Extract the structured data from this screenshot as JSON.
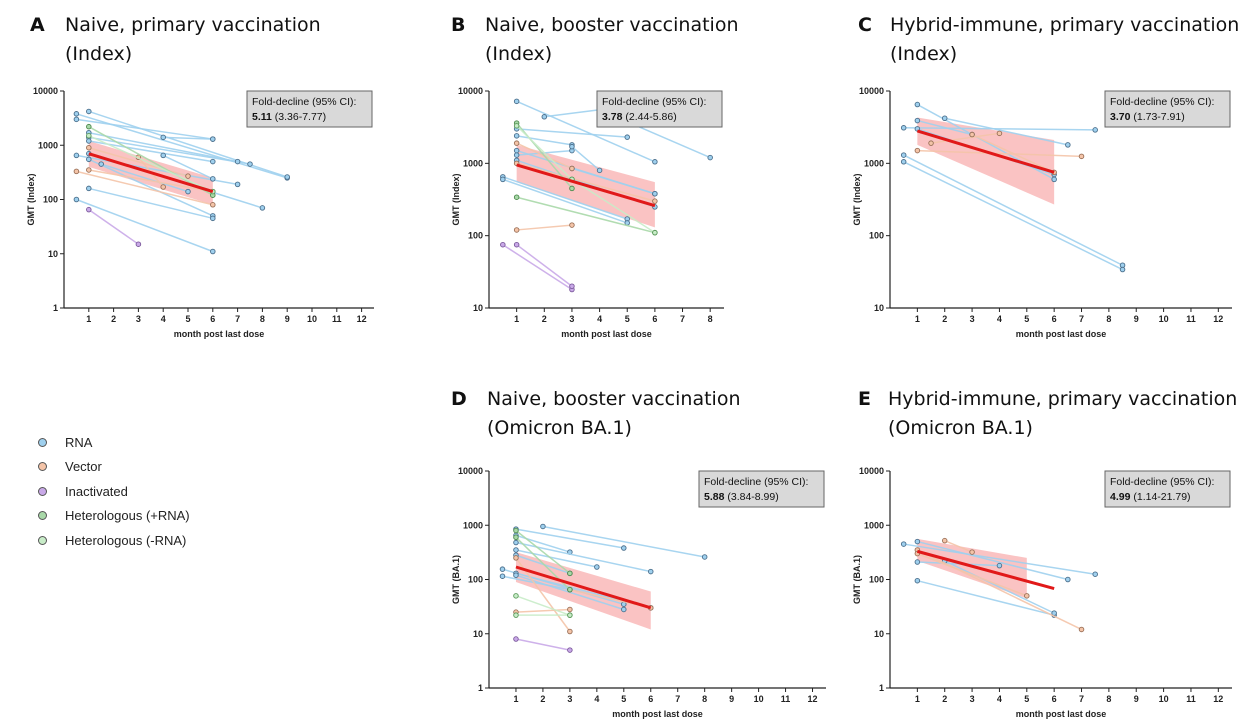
{
  "legend": [
    {
      "label": "RNA",
      "color": "#9fd0ee"
    },
    {
      "label": "Vector",
      "color": "#f4c4a8"
    },
    {
      "label": "Inactivated",
      "color": "#c9a9e8"
    },
    {
      "label": "Heterologous (+RNA)",
      "color": "#a8d8a8"
    },
    {
      "label": "Heterologous (-RNA)",
      "color": "#c8ecc8"
    }
  ],
  "chart_data": [
    {
      "id": "A",
      "type": "line",
      "panel_label": "A",
      "title_line1": "Naive, primary vaccination",
      "title_line2": "(Index)",
      "ylabel": "GMT (Index)",
      "xlabel": "month post last dose",
      "yscale": "log",
      "ylim": [
        1,
        10000
      ],
      "xlim": [
        0,
        12.5
      ],
      "yticks": [
        "1",
        "10",
        "100",
        "1000",
        "10000"
      ],
      "xticks": [
        "1",
        "2",
        "3",
        "4",
        "5",
        "6",
        "7",
        "8",
        "9",
        "10",
        "11",
        "12"
      ],
      "annotation_title": "Fold-decline (95% CI):",
      "annotation_bold": "5.11",
      "annotation_ci": "(3.36-7.77)",
      "fit": {
        "x": [
          1,
          6
        ],
        "y": [
          700,
          140
        ]
      },
      "band": {
        "x": [
          1,
          6
        ],
        "lower": [
          400,
          80
        ],
        "upper": [
          1200,
          250
        ]
      },
      "series": [
        {
          "group": "RNA",
          "x": [
            0.5,
            9
          ],
          "y": [
            3800,
            250
          ]
        },
        {
          "group": "RNA",
          "x": [
            1,
            9
          ],
          "y": [
            4200,
            260
          ]
        },
        {
          "group": "RNA",
          "x": [
            0.5,
            6
          ],
          "y": [
            3000,
            1300
          ]
        },
        {
          "group": "RNA",
          "x": [
            1,
            7.5
          ],
          "y": [
            1400,
            450
          ]
        },
        {
          "group": "RNA",
          "x": [
            4,
            6
          ],
          "y": [
            1400,
            1300
          ]
        },
        {
          "group": "RNA",
          "x": [
            1,
            7
          ],
          "y": [
            1700,
            500
          ]
        },
        {
          "group": "RNA",
          "x": [
            1,
            6
          ],
          "y": [
            1200,
            500
          ]
        },
        {
          "group": "RNA",
          "x": [
            0.5,
            7
          ],
          "y": [
            650,
            190
          ]
        },
        {
          "group": "RNA",
          "x": [
            1,
            8
          ],
          "y": [
            700,
            70
          ]
        },
        {
          "group": "RNA",
          "x": [
            1,
            6
          ],
          "y": [
            550,
            50
          ]
        },
        {
          "group": "RNA",
          "x": [
            1,
            6
          ],
          "y": [
            160,
            45
          ]
        },
        {
          "group": "RNA",
          "x": [
            0.5,
            6
          ],
          "y": [
            100,
            11
          ]
        },
        {
          "group": "RNA",
          "x": [
            1.5,
            5
          ],
          "y": [
            450,
            140
          ]
        },
        {
          "group": "RNA",
          "x": [
            4,
            6
          ],
          "y": [
            650,
            240
          ]
        },
        {
          "group": "Vector",
          "x": [
            0.5,
            6
          ],
          "y": [
            330,
            80
          ]
        },
        {
          "group": "Vector",
          "x": [
            1,
            6
          ],
          "y": [
            350,
            140
          ]
        },
        {
          "group": "Vector",
          "x": [
            3,
            4
          ],
          "y": [
            600,
            170
          ]
        },
        {
          "group": "Vector",
          "x": [
            1,
            5
          ],
          "y": [
            900,
            270
          ]
        },
        {
          "group": "Inactivated",
          "x": [
            1,
            3
          ],
          "y": [
            65,
            15
          ]
        },
        {
          "group": "Heterologous (+RNA)",
          "x": [
            1,
            6
          ],
          "y": [
            2200,
            120
          ]
        },
        {
          "group": "Heterologous (-RNA)",
          "x": [
            1,
            6
          ],
          "y": [
            1500,
            140
          ]
        }
      ]
    },
    {
      "id": "B",
      "type": "line",
      "panel_label": "B",
      "title_line1": "Naive, booster vaccination",
      "title_line2": "(Index)",
      "ylabel": "GMT (Index)",
      "xlabel": "month post last dose",
      "yscale": "log",
      "ylim": [
        10,
        10000
      ],
      "xlim": [
        0,
        8.5
      ],
      "yticks": [
        "10",
        "100",
        "1000",
        "10000"
      ],
      "xticks": [
        "1",
        "2",
        "3",
        "4",
        "5",
        "6",
        "7",
        "8"
      ],
      "annotation_title": "Fold-decline (95% CI):",
      "annotation_bold": "3.78",
      "annotation_ci": "(2.44-5.86)",
      "fit": {
        "x": [
          1,
          6
        ],
        "y": [
          950,
          260
        ]
      },
      "band": {
        "x": [
          1,
          6
        ],
        "lower": [
          550,
          130
        ],
        "upper": [
          1800,
          550
        ]
      },
      "series": [
        {
          "group": "RNA",
          "x": [
            1,
            6
          ],
          "y": [
            7200,
            1050
          ]
        },
        {
          "group": "RNA",
          "x": [
            2,
            4
          ],
          "y": [
            4400,
            5500
          ]
        },
        {
          "group": "RNA",
          "x": [
            4,
            8
          ],
          "y": [
            5500,
            1200
          ]
        },
        {
          "group": "RNA",
          "x": [
            1,
            5
          ],
          "y": [
            3000,
            2300
          ]
        },
        {
          "group": "RNA",
          "x": [
            1,
            3
          ],
          "y": [
            2400,
            1800
          ]
        },
        {
          "group": "RNA",
          "x": [
            1,
            6
          ],
          "y": [
            1500,
            380
          ]
        },
        {
          "group": "RNA",
          "x": [
            1,
            3
          ],
          "y": [
            1300,
            1500
          ]
        },
        {
          "group": "RNA",
          "x": [
            1,
            6
          ],
          "y": [
            1100,
            250
          ]
        },
        {
          "group": "RNA",
          "x": [
            0.5,
            5
          ],
          "y": [
            650,
            170
          ]
        },
        {
          "group": "RNA",
          "x": [
            0.5,
            5
          ],
          "y": [
            600,
            150
          ]
        },
        {
          "group": "RNA",
          "x": [
            3,
            6
          ],
          "y": [
            850,
            380
          ]
        },
        {
          "group": "RNA",
          "x": [
            3,
            4
          ],
          "y": [
            1700,
            800
          ]
        },
        {
          "group": "Vector",
          "x": [
            1,
            3
          ],
          "y": [
            1900,
            850
          ]
        },
        {
          "group": "Vector",
          "x": [
            1,
            3
          ],
          "y": [
            120,
            140
          ]
        },
        {
          "group": "Vector",
          "x": [
            1,
            6
          ],
          "y": [
            1000,
            300
          ]
        },
        {
          "group": "Inactivated",
          "x": [
            0.5,
            3
          ],
          "y": [
            75,
            18
          ]
        },
        {
          "group": "Inactivated",
          "x": [
            1,
            3
          ],
          "y": [
            75,
            20
          ]
        },
        {
          "group": "Heterologous (+RNA)",
          "x": [
            1,
            3
          ],
          "y": [
            3600,
            450
          ]
        },
        {
          "group": "Heterologous (+RNA)",
          "x": [
            1,
            6
          ],
          "y": [
            340,
            110
          ]
        },
        {
          "group": "Heterologous (-RNA)",
          "x": [
            1,
            3
          ],
          "y": [
            3300,
            600
          ]
        },
        {
          "group": "Heterologous (-RNA)",
          "x": [
            3,
            6
          ],
          "y": [
            600,
            110
          ]
        }
      ]
    },
    {
      "id": "C",
      "type": "line",
      "panel_label": "C",
      "title_line1": "Hybrid-immune, primary vaccination",
      "title_line2": "(Index)",
      "ylabel": "GMT (Index)",
      "xlabel": "month post last dose",
      "yscale": "log",
      "ylim": [
        10,
        10000
      ],
      "xlim": [
        0,
        12.5
      ],
      "yticks": [
        "10",
        "100",
        "1000",
        "10000"
      ],
      "xticks": [
        "1",
        "2",
        "3",
        "4",
        "5",
        "6",
        "7",
        "8",
        "9",
        "10",
        "11",
        "12"
      ],
      "annotation_title": "Fold-decline (95% CI):",
      "annotation_bold": "3.70",
      "annotation_ci": "(1.73-7.91)",
      "fit": {
        "x": [
          1,
          6
        ],
        "y": [
          2800,
          750
        ]
      },
      "band": {
        "x": [
          1,
          6
        ],
        "lower": [
          1800,
          270
        ],
        "upper": [
          4300,
          2100
        ]
      },
      "series": [
        {
          "group": "RNA",
          "x": [
            1,
            6
          ],
          "y": [
            6500,
            600
          ]
        },
        {
          "group": "RNA",
          "x": [
            0.5,
            7.5
          ],
          "y": [
            3100,
            2900
          ]
        },
        {
          "group": "RNA",
          "x": [
            2,
            6.5
          ],
          "y": [
            4200,
            1800
          ]
        },
        {
          "group": "RNA",
          "x": [
            1,
            3
          ],
          "y": [
            3900,
            2500
          ]
        },
        {
          "group": "RNA",
          "x": [
            0.5,
            8.5
          ],
          "y": [
            1300,
            39
          ]
        },
        {
          "group": "RNA",
          "x": [
            0.5,
            8.5
          ],
          "y": [
            1050,
            34
          ]
        },
        {
          "group": "RNA",
          "x": [
            1,
            6
          ],
          "y": [
            3000,
            700
          ]
        },
        {
          "group": "Vector",
          "x": [
            1,
            7
          ],
          "y": [
            1500,
            1250
          ]
        },
        {
          "group": "Vector",
          "x": [
            1.5,
            4
          ],
          "y": [
            1900,
            2600
          ]
        },
        {
          "group": "Vector",
          "x": [
            3,
            6
          ],
          "y": [
            2500,
            750
          ]
        }
      ]
    },
    {
      "id": "D",
      "type": "line",
      "panel_label": "D",
      "title_line1": "Naive, booster vaccination",
      "title_line2": "(Omicron BA.1)",
      "ylabel": "GMT (BA.1)",
      "xlabel": "month post last dose",
      "yscale": "log",
      "ylim": [
        1,
        10000
      ],
      "xlim": [
        0,
        12.5
      ],
      "yticks": [
        "1",
        "10",
        "100",
        "1000",
        "10000"
      ],
      "xticks": [
        "1",
        "2",
        "3",
        "4",
        "5",
        "6",
        "7",
        "8",
        "9",
        "10",
        "11",
        "12"
      ],
      "annotation_title": "Fold-decline (95% CI):",
      "annotation_bold": "5.88",
      "annotation_ci": "(3.84-8.99)",
      "fit": {
        "x": [
          1,
          6
        ],
        "y": [
          170,
          30
        ]
      },
      "band": {
        "x": [
          1,
          6
        ],
        "lower": [
          90,
          12
        ],
        "upper": [
          320,
          60
        ]
      },
      "series": [
        {
          "group": "RNA",
          "x": [
            2,
            8
          ],
          "y": [
            950,
            260
          ]
        },
        {
          "group": "RNA",
          "x": [
            1,
            5
          ],
          "y": [
            850,
            380
          ]
        },
        {
          "group": "RNA",
          "x": [
            1,
            3
          ],
          "y": [
            650,
            320
          ]
        },
        {
          "group": "RNA",
          "x": [
            1,
            6
          ],
          "y": [
            480,
            140
          ]
        },
        {
          "group": "RNA",
          "x": [
            1,
            4
          ],
          "y": [
            350,
            170
          ]
        },
        {
          "group": "RNA",
          "x": [
            1,
            3
          ],
          "y": [
            280,
            130
          ]
        },
        {
          "group": "RNA",
          "x": [
            0.5,
            5
          ],
          "y": [
            155,
            35
          ]
        },
        {
          "group": "RNA",
          "x": [
            0.5,
            3
          ],
          "y": [
            115,
            65
          ]
        },
        {
          "group": "RNA",
          "x": [
            1,
            6
          ],
          "y": [
            130,
            30
          ]
        },
        {
          "group": "RNA",
          "x": [
            1,
            5
          ],
          "y": [
            120,
            28
          ]
        },
        {
          "group": "Vector",
          "x": [
            1,
            3
          ],
          "y": [
            250,
            11
          ]
        },
        {
          "group": "Vector",
          "x": [
            1,
            3
          ],
          "y": [
            25,
            28
          ]
        },
        {
          "group": "Vector",
          "x": [
            3,
            6
          ],
          "y": [
            65,
            30
          ]
        },
        {
          "group": "Inactivated",
          "x": [
            1,
            3
          ],
          "y": [
            8,
            5
          ]
        },
        {
          "group": "Heterologous (+RNA)",
          "x": [
            1,
            3
          ],
          "y": [
            800,
            130
          ]
        },
        {
          "group": "Heterologous (+RNA)",
          "x": [
            1,
            3
          ],
          "y": [
            600,
            65
          ]
        },
        {
          "group": "Heterologous (-RNA)",
          "x": [
            1,
            3
          ],
          "y": [
            50,
            22
          ]
        },
        {
          "group": "Heterologous (-RNA)",
          "x": [
            1,
            3
          ],
          "y": [
            22,
            22
          ]
        }
      ]
    },
    {
      "id": "E",
      "type": "line",
      "panel_label": "E",
      "title_line1": "Hybrid-immune, primary vaccination",
      "title_line2": "(Omicron BA.1)",
      "ylabel": "GMT (BA.1)",
      "xlabel": "month post last dose",
      "yscale": "log",
      "ylim": [
        1,
        10000
      ],
      "xlim": [
        0,
        12.5
      ],
      "yticks": [
        "1",
        "10",
        "100",
        "1000",
        "10000"
      ],
      "xticks": [
        "1",
        "2",
        "3",
        "4",
        "5",
        "6",
        "7",
        "8",
        "9",
        "10",
        "11",
        "12"
      ],
      "annotation_title": "Fold-decline (95% CI):",
      "annotation_bold": "4.99",
      "annotation_ci": "(1.14-21.79)",
      "fit": {
        "x": [
          1,
          6
        ],
        "y": [
          330,
          68
        ]
      },
      "band": {
        "x": [
          1,
          5
        ],
        "lower": [
          220,
          45
        ],
        "upper": [
          560,
          250
        ]
      },
      "series": [
        {
          "group": "RNA",
          "x": [
            0.5,
            7.5
          ],
          "y": [
            450,
            125
          ]
        },
        {
          "group": "RNA",
          "x": [
            1,
            6.5
          ],
          "y": [
            500,
            100
          ]
        },
        {
          "group": "RNA",
          "x": [
            1,
            6
          ],
          "y": [
            95,
            22
          ]
        },
        {
          "group": "RNA",
          "x": [
            1,
            4
          ],
          "y": [
            210,
            180
          ]
        },
        {
          "group": "RNA",
          "x": [
            2,
            6
          ],
          "y": [
            220,
            24
          ]
        },
        {
          "group": "Vector",
          "x": [
            1,
            7
          ],
          "y": [
            350,
            12
          ]
        },
        {
          "group": "Vector",
          "x": [
            2,
            3
          ],
          "y": [
            520,
            320
          ]
        },
        {
          "group": "Vector",
          "x": [
            1,
            5
          ],
          "y": [
            300,
            50
          ]
        }
      ]
    }
  ]
}
